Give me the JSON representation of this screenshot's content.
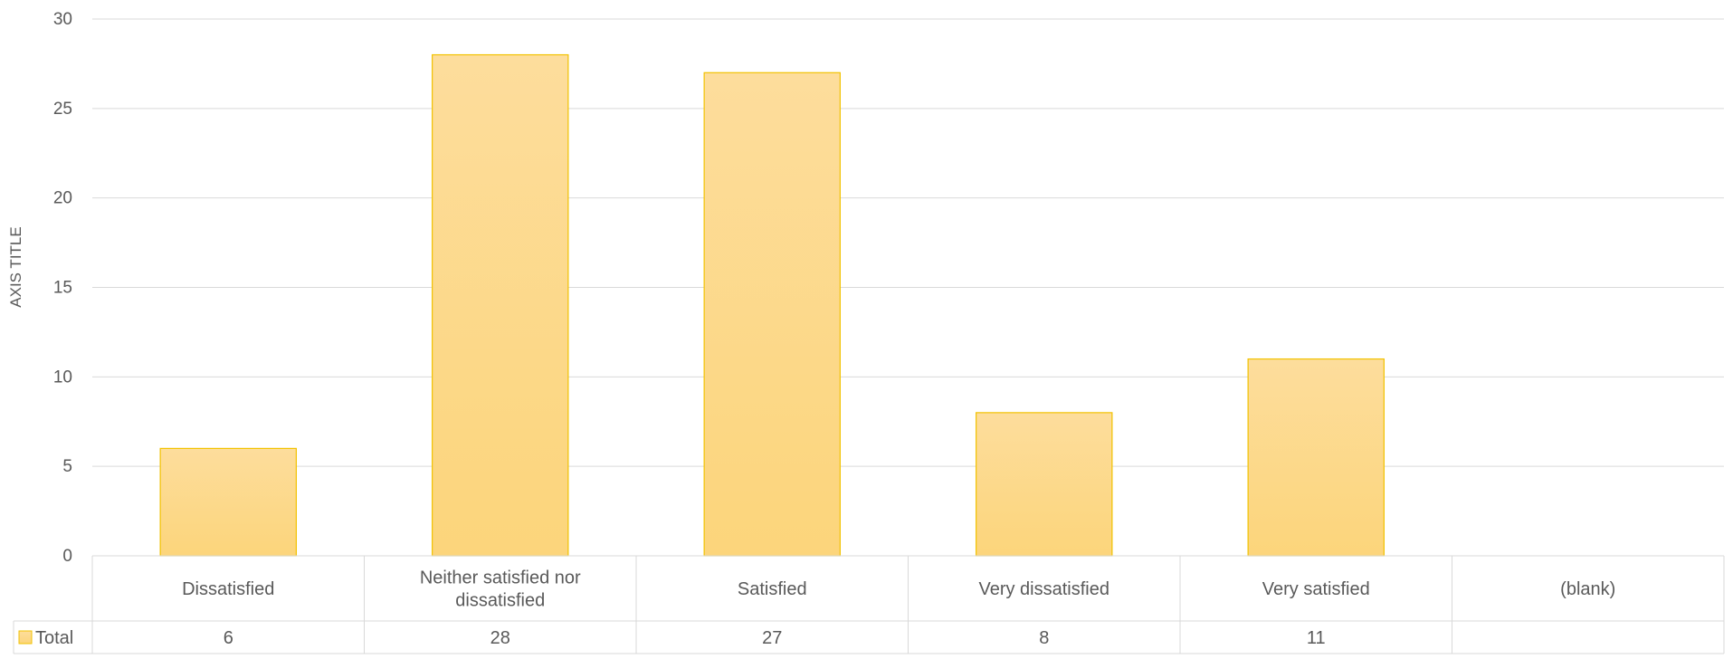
{
  "chart_data": {
    "type": "bar",
    "categories": [
      "Dissatisfied",
      "Neither satisfied nor dissatisfied",
      "Satisfied",
      "Very dissatisfied",
      "Very satisfied",
      "(blank)"
    ],
    "category_label_lines": [
      [
        "Dissatisfied"
      ],
      [
        "Neither satisfied nor",
        "dissatisfied"
      ],
      [
        "Satisfied"
      ],
      [
        "Very dissatisfied"
      ],
      [
        "Very satisfied"
      ],
      [
        "(blank)"
      ]
    ],
    "series": [
      {
        "name": "Total",
        "values": [
          6,
          28,
          27,
          8,
          11,
          null
        ],
        "table_labels": [
          "6",
          "28",
          "27",
          "8",
          "11",
          ""
        ]
      }
    ],
    "ylabel": "AXIS TITLE",
    "ylim": [
      0,
      30
    ],
    "yticks": [
      0,
      5,
      10,
      15,
      20,
      25,
      30
    ],
    "grid": true,
    "data_table": true,
    "colors": {
      "bar_fill_top": "#FDDD9C",
      "bar_fill_bottom": "#FCD57B",
      "bar_border": "#F2C200",
      "gridline": "#D9D9D9",
      "text": "#595959",
      "table_border": "#D9D9D9"
    }
  }
}
